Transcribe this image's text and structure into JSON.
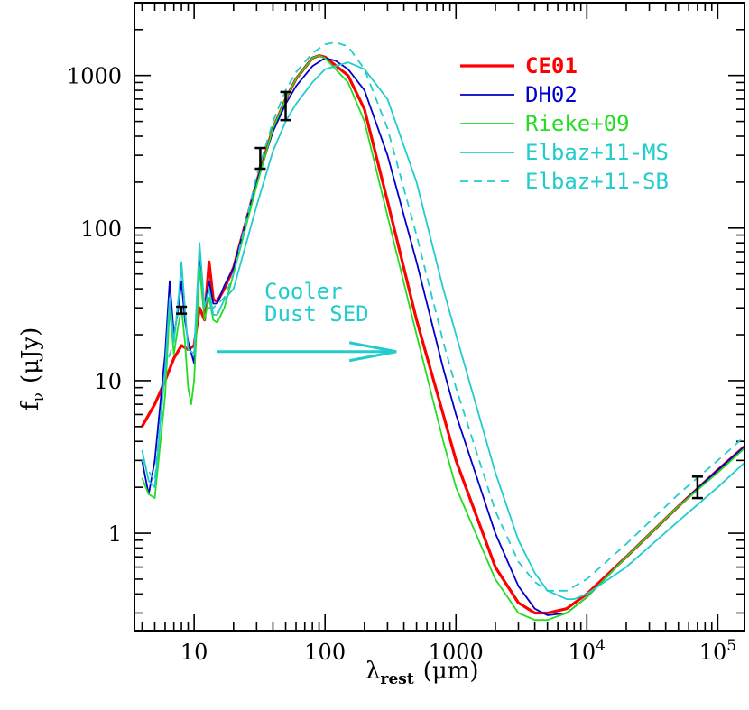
{
  "chart_data": {
    "type": "line",
    "title": "",
    "xlabel_main": "λ",
    "xlabel_sub": "rest",
    "xlabel_unit": "(μm)",
    "ylabel_main": "f",
    "ylabel_sub": "ν",
    "ylabel_unit": "(μJy)",
    "x_scale": "log",
    "y_scale": "log",
    "xlim": [
      3.5,
      160000
    ],
    "ylim": [
      0.23,
      3000
    ],
    "x_ticks": [
      {
        "value": 10,
        "label": "10"
      },
      {
        "value": 100,
        "label": "100"
      },
      {
        "value": 1000,
        "label": "1000"
      },
      {
        "value": 10000,
        "label": "10",
        "exp": "4"
      },
      {
        "value": 100000,
        "label": "10",
        "exp": "5"
      }
    ],
    "y_ticks": [
      {
        "value": 1,
        "label": "1"
      },
      {
        "value": 10,
        "label": "10"
      },
      {
        "value": 100,
        "label": "100"
      },
      {
        "value": 1000,
        "label": "1000"
      }
    ],
    "legend_position": "top-right",
    "series": [
      {
        "name": "CE01",
        "color": "#ff0000",
        "style": "solid",
        "width": 3.2,
        "bold": true,
        "points": [
          [
            4,
            5
          ],
          [
            5,
            7
          ],
          [
            6,
            10
          ],
          [
            7,
            14
          ],
          [
            8,
            17
          ],
          [
            9,
            16
          ],
          [
            10,
            17
          ],
          [
            11,
            30
          ],
          [
            12,
            25
          ],
          [
            13,
            60
          ],
          [
            14,
            34
          ],
          [
            15,
            33
          ],
          [
            17,
            40
          ],
          [
            20,
            55
          ],
          [
            30,
            200
          ],
          [
            40,
            450
          ],
          [
            50,
            700
          ],
          [
            60,
            950
          ],
          [
            80,
            1300
          ],
          [
            90,
            1350
          ],
          [
            100,
            1320
          ],
          [
            150,
            1000
          ],
          [
            200,
            600
          ],
          [
            300,
            150
          ],
          [
            500,
            25
          ],
          [
            800,
            6
          ],
          [
            1000,
            3
          ],
          [
            2000,
            0.6
          ],
          [
            3000,
            0.35
          ],
          [
            4000,
            0.3
          ],
          [
            5000,
            0.3
          ],
          [
            7000,
            0.32
          ],
          [
            10000,
            0.4
          ],
          [
            20000,
            0.7
          ],
          [
            50000,
            1.5
          ],
          [
            100000,
            2.6
          ],
          [
            160000,
            3.7
          ]
        ]
      },
      {
        "name": "DH02",
        "color": "#0000cc",
        "style": "solid",
        "width": 1.8,
        "bold": false,
        "points": [
          [
            4,
            3
          ],
          [
            4.5,
            1.8
          ],
          [
            5,
            3
          ],
          [
            6,
            15
          ],
          [
            6.5,
            45
          ],
          [
            7,
            20
          ],
          [
            7.5,
            28
          ],
          [
            8,
            45
          ],
          [
            8.5,
            25
          ],
          [
            9,
            18
          ],
          [
            10,
            13
          ],
          [
            11,
            70
          ],
          [
            12,
            30
          ],
          [
            13,
            45
          ],
          [
            14,
            32
          ],
          [
            15,
            32
          ],
          [
            17,
            42
          ],
          [
            20,
            55
          ],
          [
            30,
            200
          ],
          [
            40,
            430
          ],
          [
            50,
            650
          ],
          [
            60,
            850
          ],
          [
            80,
            1150
          ],
          [
            100,
            1300
          ],
          [
            120,
            1250
          ],
          [
            150,
            1100
          ],
          [
            200,
            800
          ],
          [
            300,
            300
          ],
          [
            500,
            60
          ],
          [
            800,
            12
          ],
          [
            1000,
            6
          ],
          [
            2000,
            1
          ],
          [
            3000,
            0.45
          ],
          [
            4000,
            0.32
          ],
          [
            5000,
            0.29
          ],
          [
            7000,
            0.3
          ],
          [
            10000,
            0.38
          ],
          [
            20000,
            0.7
          ],
          [
            50000,
            1.5
          ],
          [
            100000,
            2.6
          ],
          [
            160000,
            3.7
          ]
        ]
      },
      {
        "name": "Rieke+09",
        "color": "#22dd22",
        "style": "solid",
        "width": 1.8,
        "bold": false,
        "points": [
          [
            4,
            2.3
          ],
          [
            4.5,
            1.8
          ],
          [
            5,
            1.7
          ],
          [
            6,
            8
          ],
          [
            6.5,
            30
          ],
          [
            7,
            15
          ],
          [
            7.5,
            22
          ],
          [
            8,
            30
          ],
          [
            8.5,
            18
          ],
          [
            9,
            9
          ],
          [
            9.5,
            7
          ],
          [
            10,
            10
          ],
          [
            11,
            55
          ],
          [
            12,
            25
          ],
          [
            13,
            35
          ],
          [
            14,
            25
          ],
          [
            15,
            24
          ],
          [
            17,
            30
          ],
          [
            20,
            50
          ],
          [
            30,
            190
          ],
          [
            40,
            450
          ],
          [
            50,
            700
          ],
          [
            60,
            950
          ],
          [
            80,
            1300
          ],
          [
            90,
            1350
          ],
          [
            100,
            1300
          ],
          [
            150,
            900
          ],
          [
            200,
            500
          ],
          [
            300,
            120
          ],
          [
            500,
            20
          ],
          [
            800,
            4
          ],
          [
            1000,
            2
          ],
          [
            2000,
            0.5
          ],
          [
            3000,
            0.3
          ],
          [
            4000,
            0.27
          ],
          [
            5000,
            0.27
          ],
          [
            7000,
            0.3
          ],
          [
            10000,
            0.38
          ],
          [
            20000,
            0.7
          ],
          [
            50000,
            1.5
          ],
          [
            100000,
            2.5
          ],
          [
            160000,
            3.6
          ]
        ]
      },
      {
        "name": "Elbaz+11-MS",
        "color": "#22cccc",
        "style": "solid",
        "width": 1.8,
        "bold": false,
        "points": [
          [
            4,
            3.5
          ],
          [
            4.5,
            2.2
          ],
          [
            5,
            2
          ],
          [
            6,
            12
          ],
          [
            6.5,
            35
          ],
          [
            7,
            18
          ],
          [
            7.5,
            30
          ],
          [
            8,
            60
          ],
          [
            8.5,
            30
          ],
          [
            9,
            16
          ],
          [
            10,
            15
          ],
          [
            11,
            80
          ],
          [
            12,
            30
          ],
          [
            13,
            40
          ],
          [
            14,
            27
          ],
          [
            15,
            27
          ],
          [
            17,
            34
          ],
          [
            20,
            40
          ],
          [
            30,
            140
          ],
          [
            40,
            320
          ],
          [
            50,
            500
          ],
          [
            60,
            650
          ],
          [
            80,
            900
          ],
          [
            100,
            1100
          ],
          [
            150,
            1220
          ],
          [
            200,
            1100
          ],
          [
            300,
            700
          ],
          [
            500,
            200
          ],
          [
            800,
            40
          ],
          [
            1000,
            20
          ],
          [
            2000,
            2.5
          ],
          [
            3000,
            0.9
          ],
          [
            4000,
            0.55
          ],
          [
            5000,
            0.42
          ],
          [
            7000,
            0.37
          ],
          [
            8000,
            0.37
          ],
          [
            10000,
            0.4
          ],
          [
            20000,
            0.6
          ],
          [
            50000,
            1.2
          ],
          [
            100000,
            2
          ],
          [
            160000,
            2.9
          ]
        ]
      },
      {
        "name": "Elbaz+11-SB",
        "color": "#22cccc",
        "style": "dashed",
        "width": 1.8,
        "bold": false,
        "points": [
          [
            4,
            3
          ],
          [
            5,
            2.2
          ],
          [
            6,
            12
          ],
          [
            7,
            18
          ],
          [
            8,
            55
          ],
          [
            9,
            16
          ],
          [
            10,
            15
          ],
          [
            11,
            75
          ],
          [
            12,
            30
          ],
          [
            14,
            30
          ],
          [
            17,
            35
          ],
          [
            20,
            50
          ],
          [
            30,
            220
          ],
          [
            40,
            500
          ],
          [
            50,
            800
          ],
          [
            60,
            1050
          ],
          [
            80,
            1400
          ],
          [
            100,
            1600
          ],
          [
            120,
            1650
          ],
          [
            150,
            1550
          ],
          [
            200,
            1100
          ],
          [
            300,
            450
          ],
          [
            500,
            90
          ],
          [
            800,
            18
          ],
          [
            1000,
            9
          ],
          [
            2000,
            1.4
          ],
          [
            3000,
            0.65
          ],
          [
            4000,
            0.48
          ],
          [
            5000,
            0.42
          ],
          [
            7000,
            0.42
          ],
          [
            10000,
            0.5
          ],
          [
            20000,
            0.85
          ],
          [
            50000,
            1.8
          ],
          [
            100000,
            3
          ],
          [
            160000,
            4.3
          ]
        ]
      }
    ],
    "data_points": [
      {
        "x": 8,
        "y": 29,
        "ylow": 27.5,
        "yhigh": 30.5
      },
      {
        "x": 32,
        "y": 285,
        "ylow": 245,
        "yhigh": 335
      },
      {
        "x": 50,
        "y": 640,
        "ylow": 510,
        "yhigh": 780
      },
      {
        "x": 70000,
        "y": 2.0,
        "ylow": 1.7,
        "yhigh": 2.35
      }
    ],
    "annotation": {
      "lines": [
        "Cooler",
        "Dust SED"
      ],
      "color": "#22cccc",
      "arrow_x": [
        15,
        350
      ],
      "arrow_y": 15.5
    }
  }
}
